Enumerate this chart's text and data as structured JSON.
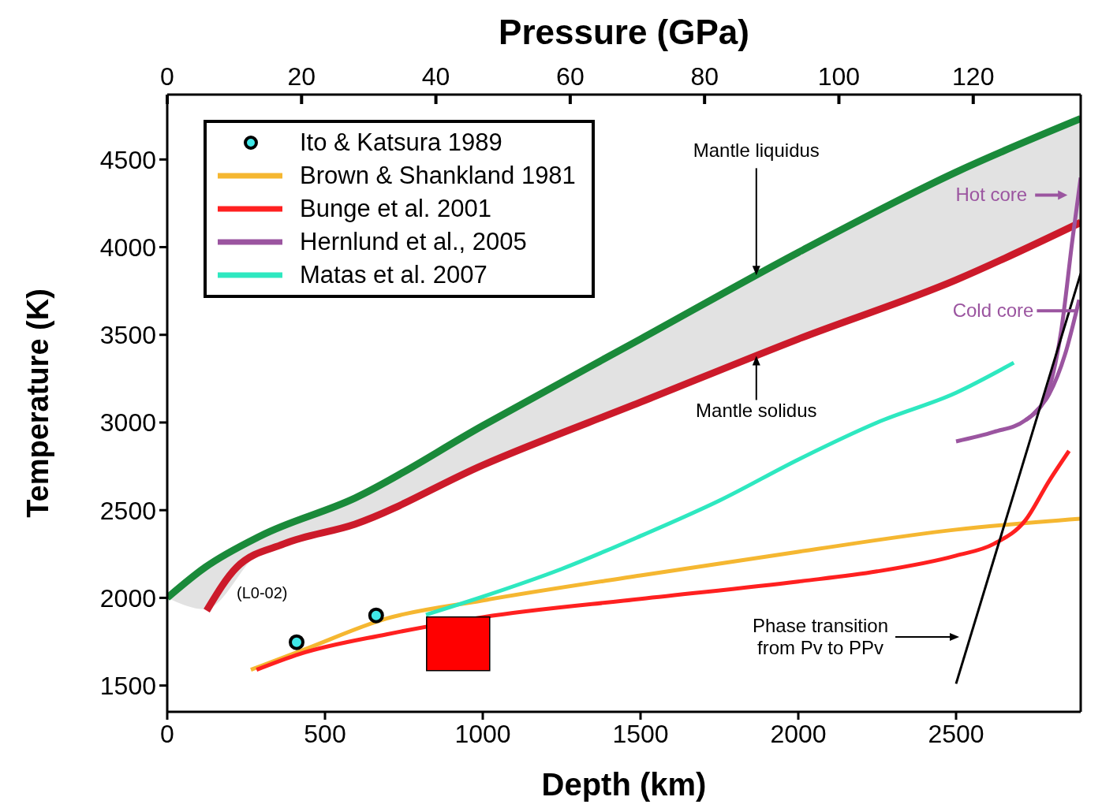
{
  "chart_data": {
    "type": "line",
    "xlabel": "Depth (km)",
    "ylabel": "Temperature (K)",
    "x2label": "Pressure (GPa)",
    "xlim": [
      0,
      2895
    ],
    "xticks": [
      0,
      500,
      1000,
      1500,
      2000,
      2500
    ],
    "x2lim": [
      0,
      136
    ],
    "x2ticks": [
      0,
      20,
      40,
      60,
      80,
      100,
      120
    ],
    "ylim": [
      1350,
      4870
    ],
    "yticks": [
      1500,
      2000,
      2500,
      3000,
      3500,
      4000,
      4500
    ],
    "grid": false,
    "legend": "top left",
    "series": [
      {
        "color": "#1a8a3a",
        "x": [
          0,
          120,
          295,
          595,
          1000,
          1500,
          2000,
          2500,
          2895
        ],
        "values": [
          2000,
          2174,
          2353,
          2569,
          2982,
          3476,
          3970,
          4428,
          4733
        ],
        "lower": [
          2000,
          1935,
          2263,
          2420,
          2757,
          3116,
          3476,
          3813,
          4141
        ],
        "upper": [
          2000,
          2174,
          2353,
          2569,
          2982,
          3476,
          3970,
          4428,
          4733
        ]
      },
      {
        "color": "#cc1a2a",
        "x": [
          125,
          220,
          370,
          595,
          1000,
          1500,
          2000,
          2500,
          2895
        ],
        "values": [
          1927,
          2174,
          2308,
          2420,
          2757,
          3116,
          3476,
          3813,
          4141
        ]
      },
      {
        "name": "Ito & Katsura 1989",
        "type": "scatter",
        "marker": "circle",
        "color": "#40e8e8",
        "x": [
          410,
          662
        ],
        "values": [
          1747,
          1900
        ]
      },
      {
        "name": "Brown & Shankland 1981",
        "color": "#f5b731",
        "x": [
          265,
          430,
          695,
          1000,
          1500,
          2000,
          2500,
          2895
        ],
        "values": [
          1590,
          1702,
          1882,
          1985,
          2128,
          2263,
          2389,
          2452
        ]
      },
      {
        "name": "Bunge et al. 2001",
        "color": "#ff2020",
        "x": [
          283,
          420,
          695,
          1000,
          1500,
          2000,
          2250,
          2500,
          2620,
          2720,
          2795,
          2858
        ],
        "values": [
          1590,
          1680,
          1792,
          1890,
          1994,
          2093,
          2151,
          2241,
          2308,
          2443,
          2667,
          2838
        ]
      },
      {
        "name": "Hernlund et al., 2005",
        "color": "#9b55a0",
        "x": [
          2500,
          2620,
          2720,
          2783,
          2833,
          2870,
          2895
        ],
        "values": [
          2892,
          2946,
          3013,
          3139,
          3521,
          4059,
          4396
        ]
      },
      {
        "color": "#9b55a0",
        "x": [
          2720,
          2745,
          2795,
          2845,
          2890
        ],
        "values": [
          3013,
          3049,
          3161,
          3386,
          3700
        ]
      },
      {
        "name": "Matas et al. 2007",
        "color": "#2ee8c0",
        "x": [
          820,
          1000,
          1250,
          1500,
          1750,
          2000,
          2250,
          2500,
          2683
        ],
        "values": [
          1904,
          2007,
          2165,
          2353,
          2555,
          2789,
          3000,
          3170,
          3341
        ]
      },
      {
        "color": "#000000",
        "x": [
          2500,
          2895
        ],
        "values": [
          1510,
          3850
        ]
      },
      {
        "type": "bar",
        "color": "#ff0000",
        "x": [
          922
        ],
        "base": [
          1585
        ],
        "values": [
          306
        ]
      }
    ],
    "annotations": [
      {
        "text": "Mantle liquidus",
        "x": 1867,
        "y": 3839
      },
      {
        "text": "Mantle solidus",
        "x": 1867,
        "y": 3380
      },
      {
        "text": "(L0-02)",
        "x": 125,
        "y": 1927
      },
      {
        "text": "Hot core",
        "x": 2888,
        "y": 4297
      },
      {
        "text": "Cold core",
        "x": 2881,
        "y": 3637
      },
      "Phase transition\nfrom Pv to PPv"
    ]
  }
}
